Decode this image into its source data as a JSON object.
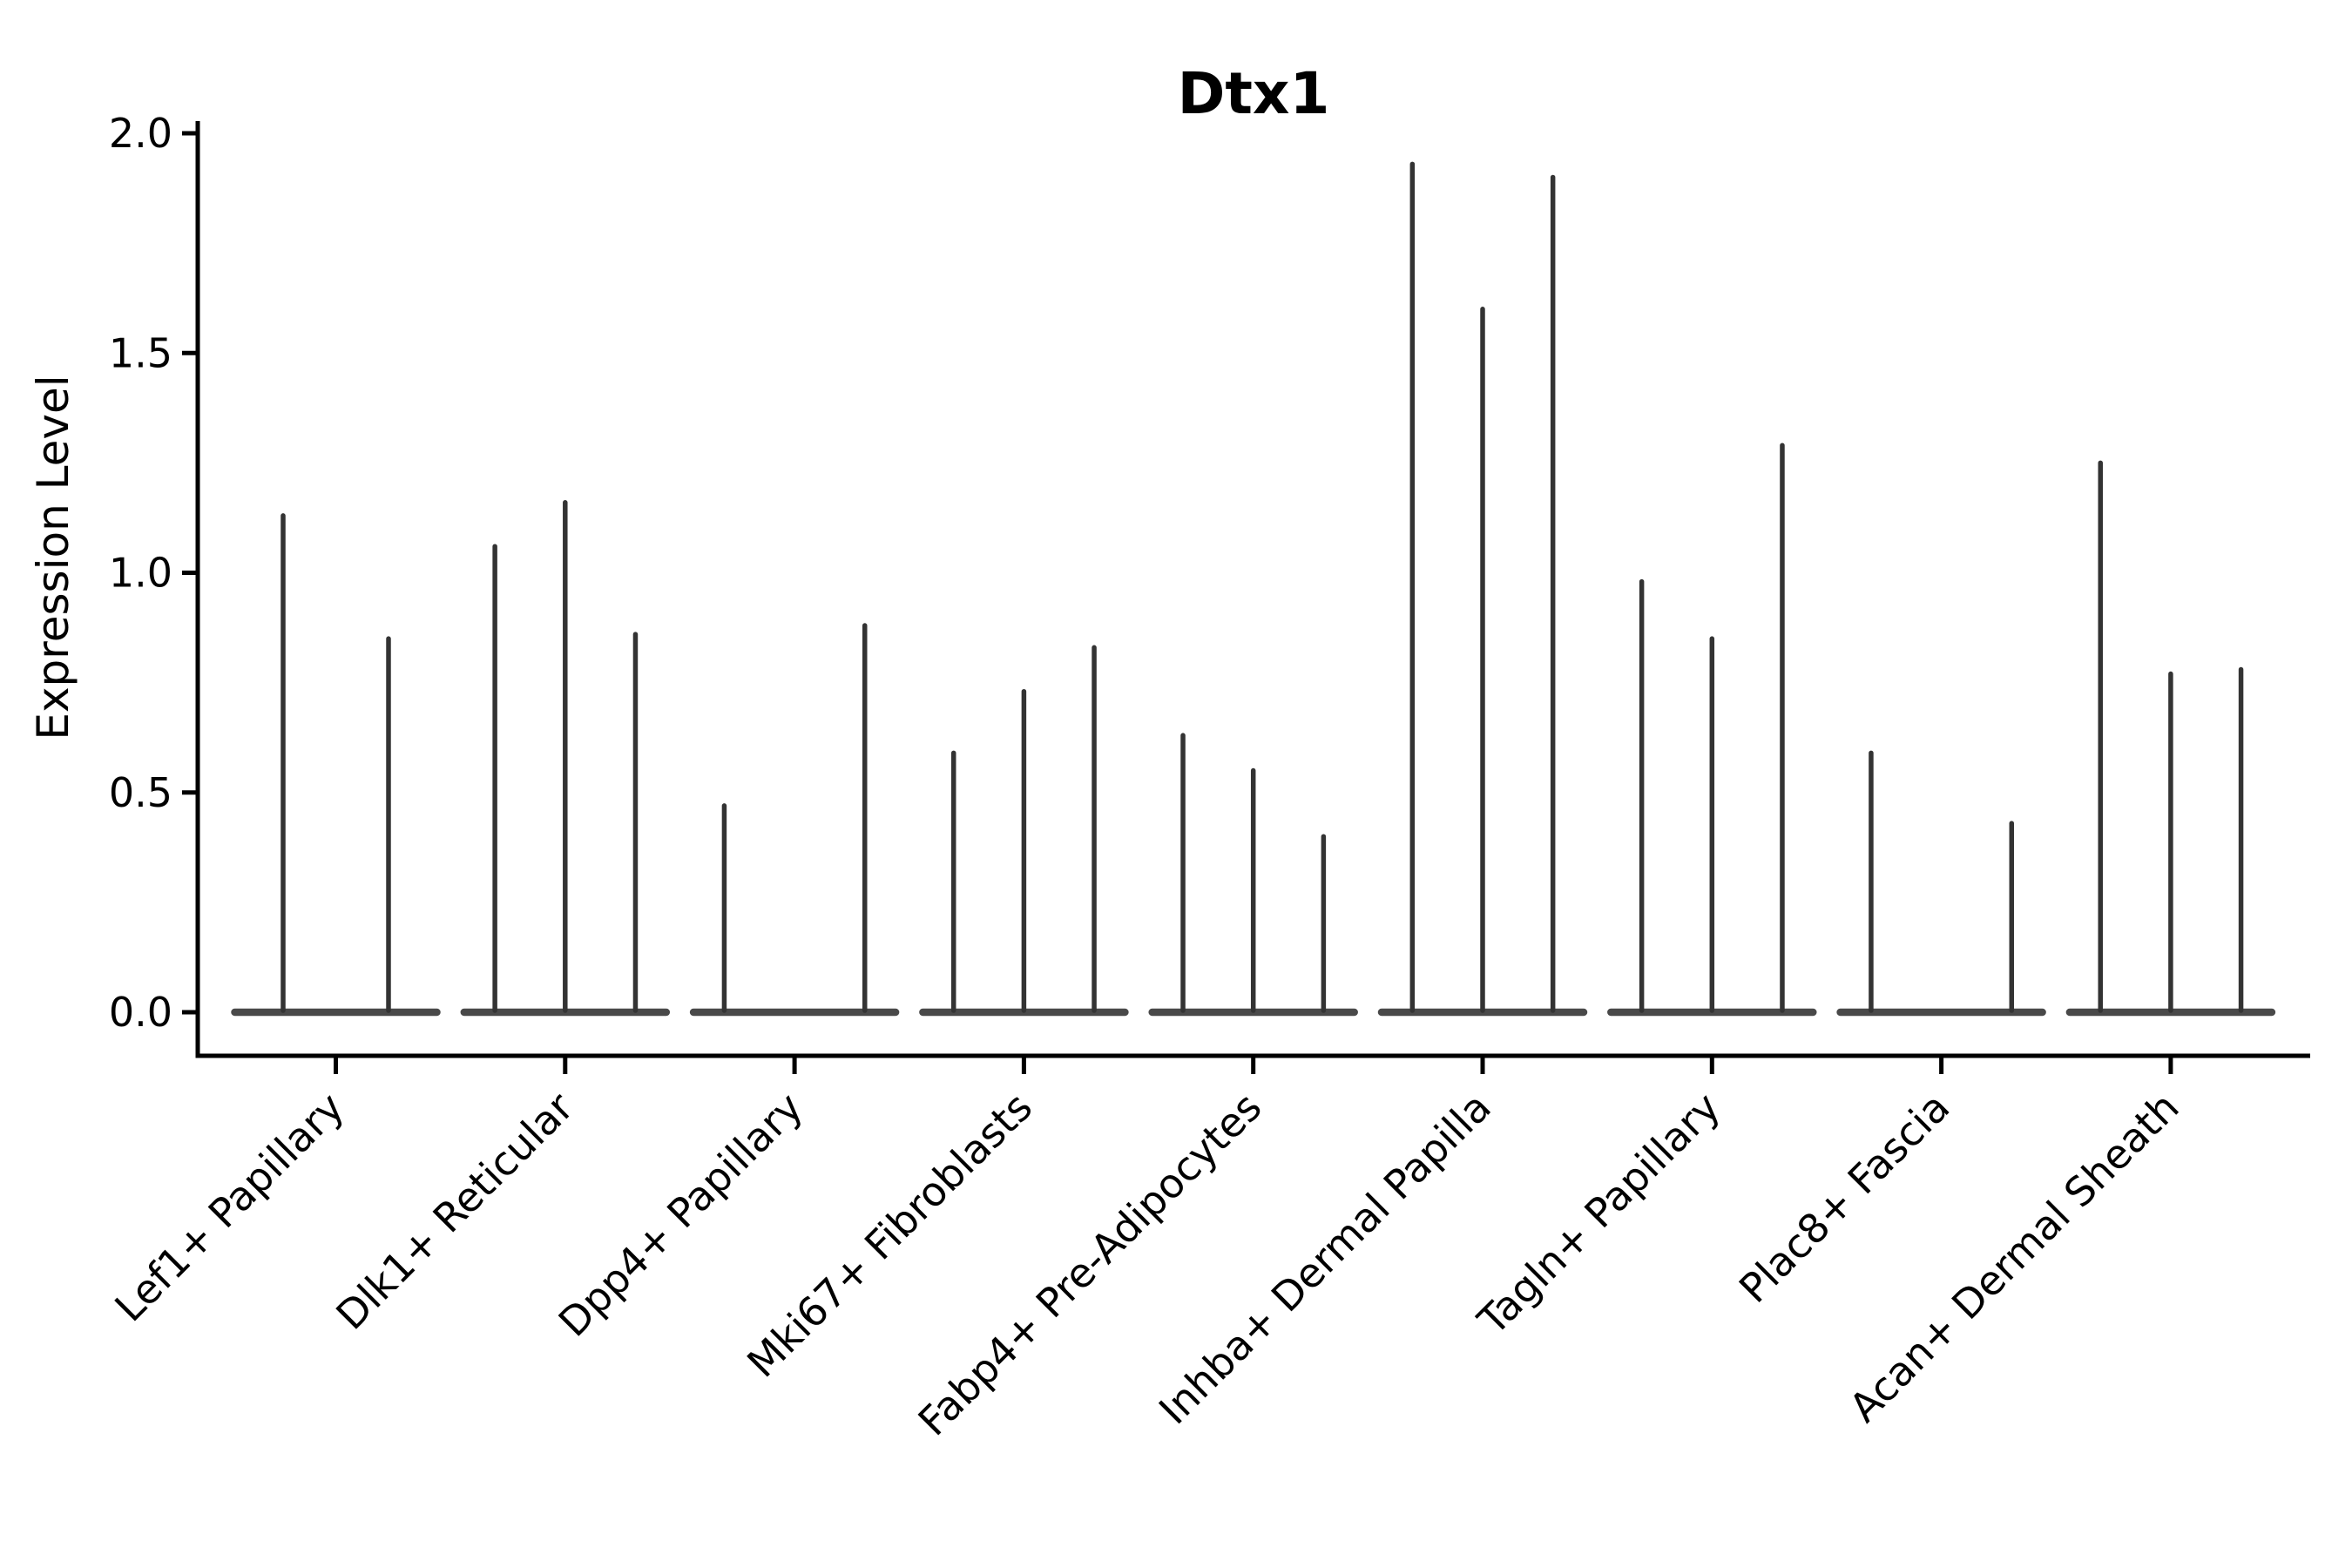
{
  "figure": {
    "background": "#ffffff"
  },
  "chart_data": {
    "type": "violin",
    "title": "Dtx1",
    "ylabel": "Expression Level",
    "xlabel": "",
    "ylim": [
      0.0,
      2.0
    ],
    "yticks": [
      "0.0",
      "0.5",
      "1.0",
      "1.5",
      "2.0"
    ],
    "ytick_values": [
      0.0,
      0.5,
      1.0,
      1.5,
      2.0
    ],
    "grid": false,
    "legend": "none",
    "x_tick_label_rotation_deg": 45,
    "categories": [
      "Lef1+ Papillary",
      "Dlk1+ Reticular",
      "Dpp4+ Papillary",
      "Mki67+ Fibroblasts",
      "Fabp4+ Pre-Adipocytes",
      "Inhba+ Dermal Papilla",
      "Tagln+ Papillary",
      "Plac8+ Fascia",
      "Acan+ Dermal Sheath"
    ],
    "violins": [
      {
        "category": "Lef1+ Papillary",
        "spike_maxima": [
          1.13,
          0.85
        ]
      },
      {
        "category": "Dlk1+ Reticular",
        "spike_maxima": [
          1.06,
          1.16,
          0.86
        ]
      },
      {
        "category": "Dpp4+ Papillary",
        "spike_maxima": [
          0.47,
          0,
          0.88
        ]
      },
      {
        "category": "Mki67+ Fibroblasts",
        "spike_maxima": [
          0.59,
          0.73,
          0.83
        ]
      },
      {
        "category": "Fabp4+ Pre-Adipocytes",
        "spike_maxima": [
          0.63,
          0.55,
          0.4
        ]
      },
      {
        "category": "Inhba+ Dermal Papilla",
        "spike_maxima": [
          1.93,
          1.6,
          1.9
        ]
      },
      {
        "category": "Tagln+ Papillary",
        "spike_maxima": [
          0.98,
          0.85,
          1.29
        ]
      },
      {
        "category": "Plac8+ Fascia",
        "spike_maxima": [
          0.59,
          0,
          0.43
        ]
      },
      {
        "category": "Acan+ Dermal Sheath",
        "spike_maxima": [
          1.25,
          0.77,
          0.78
        ]
      }
    ],
    "violin_note": "Each category holds narrow collapsed violins sitting on a flat baseline at 0; spike_maxima are the peak expression values of each thin violin spike, 0 = flat violin with no spike.",
    "violin_color": "#333333",
    "baseline_color": "#3a3a3a",
    "axis_color": "#000000"
  }
}
